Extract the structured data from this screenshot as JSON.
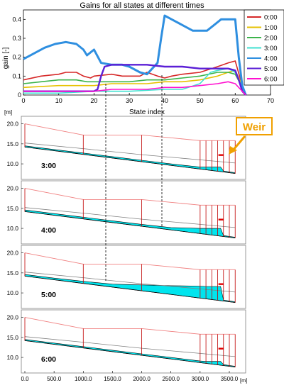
{
  "gains_chart": {
    "title": "Gains for all states at different times",
    "xlabel": "State index",
    "ylabel": "gain [-]",
    "yunit_label": "[m]"
  },
  "chart_data": [
    {
      "type": "line",
      "title": "Gains for all states at different times",
      "xlabel": "State index",
      "ylabel": "gain [-]",
      "xlim": [
        0,
        70
      ],
      "ylim": [
        0,
        0.45
      ],
      "xticks": [
        0,
        10,
        20,
        30,
        40,
        50,
        60,
        70
      ],
      "yticks": [
        0,
        0.1,
        0.2,
        0.3,
        0.4
      ],
      "legend_position": "top-right",
      "grid": false,
      "series": [
        {
          "name": "0:00",
          "color": "#d62828",
          "x": [
            0,
            5,
            10,
            12,
            15,
            17,
            19,
            20,
            25,
            28,
            30,
            33,
            35,
            38,
            40,
            42,
            45,
            50,
            55,
            58,
            60,
            62,
            63
          ],
          "y": [
            0.08,
            0.1,
            0.11,
            0.12,
            0.12,
            0.1,
            0.09,
            0.1,
            0.11,
            0.1,
            0.1,
            0.1,
            0.12,
            0.1,
            0.09,
            0.1,
            0.11,
            0.12,
            0.15,
            0.17,
            0.18,
            0.05,
            0
          ]
        },
        {
          "name": "1:00",
          "color": "#e6c200",
          "x": [
            0,
            10,
            20,
            25,
            30,
            35,
            40,
            45,
            50,
            55,
            58,
            60,
            62,
            63
          ],
          "y": [
            0.04,
            0.05,
            0.05,
            0.06,
            0.06,
            0.06,
            0.07,
            0.07,
            0.08,
            0.1,
            0.12,
            0.13,
            0.05,
            0
          ]
        },
        {
          "name": "2:00",
          "color": "#3cb44b",
          "x": [
            0,
            5,
            10,
            15,
            18,
            20,
            25,
            30,
            35,
            40,
            45,
            50,
            55,
            58,
            60,
            62,
            63
          ],
          "y": [
            0.06,
            0.07,
            0.08,
            0.08,
            0.07,
            0.07,
            0.07,
            0.07,
            0.08,
            0.08,
            0.09,
            0.1,
            0.12,
            0.12,
            0.11,
            0.04,
            0
          ]
        },
        {
          "name": "3:00",
          "color": "#40e0d0",
          "x": [
            0,
            10,
            20,
            30,
            40,
            45,
            50,
            53,
            55,
            58,
            60,
            62,
            63
          ],
          "y": [
            0.01,
            0.01,
            0.02,
            0.02,
            0.03,
            0.03,
            0.06,
            0.12,
            0.13,
            0.14,
            0.12,
            0.04,
            0
          ]
        },
        {
          "name": "4:00",
          "color": "#2f8fe0",
          "x": [
            0,
            3,
            6,
            9,
            12,
            15,
            17,
            18,
            20,
            22,
            25,
            28,
            30,
            33,
            35,
            38,
            39,
            40,
            42,
            45,
            48,
            50,
            52,
            54,
            56,
            58,
            60,
            61,
            62,
            63
          ],
          "y": [
            0.19,
            0.22,
            0.25,
            0.27,
            0.28,
            0.27,
            0.24,
            0.21,
            0.24,
            0.17,
            0.16,
            0.16,
            0.15,
            0.12,
            0.11,
            0.17,
            0.3,
            0.42,
            0.4,
            0.37,
            0.34,
            0.34,
            0.34,
            0.37,
            0.4,
            0.4,
            0.4,
            0.2,
            0.05,
            0
          ]
        },
        {
          "name": "5:00",
          "color": "#5b1fd6",
          "x": [
            0,
            10,
            20,
            21,
            22,
            23,
            25,
            30,
            35,
            40,
            45,
            50,
            55,
            58,
            60,
            61,
            62,
            63
          ],
          "y": [
            0.02,
            0.02,
            0.02,
            0.03,
            0.1,
            0.15,
            0.16,
            0.16,
            0.16,
            0.15,
            0.15,
            0.14,
            0.14,
            0.14,
            0.13,
            0.08,
            0.02,
            0
          ]
        },
        {
          "name": "6:00",
          "color": "#ff10d0",
          "x": [
            0,
            10,
            20,
            25,
            30,
            35,
            40,
            45,
            50,
            55,
            58,
            60,
            62,
            63
          ],
          "y": [
            0.02,
            0.02,
            0.02,
            0.03,
            0.03,
            0.03,
            0.04,
            0.04,
            0.05,
            0.06,
            0.07,
            0.06,
            0.02,
            0
          ]
        }
      ]
    },
    {
      "type": "line",
      "title": "",
      "xlabel": "[m]",
      "ylabel": "[m]",
      "xlim": [
        -100,
        3700
      ],
      "ylim": [
        7,
        21
      ],
      "xticks": [
        0,
        500,
        1000,
        1500,
        2000,
        2500,
        3000,
        3500
      ],
      "xtick_labels": [
        "0.0",
        "500.0",
        "1000.0",
        "1500.0",
        "2000.0",
        "2500.0",
        "3000.0",
        "3500.0"
      ],
      "yticks": [
        10,
        15,
        20
      ],
      "ytick_labels": [
        "10.0",
        "15.0",
        "20.0"
      ],
      "annotation": "Weir",
      "weir_x": 3350,
      "bed_line": {
        "x": [
          0,
          3600
        ],
        "y": [
          14.2,
          7.6
        ]
      },
      "bank_top": {
        "x": [
          0,
          1000,
          2000,
          3000,
          3600
        ],
        "y": [
          20,
          17.2,
          17.2,
          15.8,
          15.8
        ]
      },
      "cross_sections_x": [
        0,
        1000,
        2000,
        3000,
        3100,
        3200,
        3300,
        3400,
        3500,
        3600
      ],
      "panels": [
        {
          "label": "3:00",
          "water": {
            "x": [
              0,
              500,
              1000,
              1500,
              2000,
              2500,
              3000,
              3100,
              3200,
              3300,
              3350,
              3400,
              3500,
              3600
            ],
            "y": [
              14.5,
              13.6,
              12.7,
              11.8,
              10.9,
              10.0,
              9.2,
              9.2,
              9.2,
              9.2,
              9.2,
              8.2,
              8.0,
              7.8
            ]
          }
        },
        {
          "label": "4:00",
          "water": {
            "x": [
              0,
              500,
              1000,
              1500,
              2000,
              2500,
              3000,
              3100,
              3200,
              3300,
              3350,
              3400,
              3500,
              3600
            ],
            "y": [
              14.6,
              13.7,
              12.8,
              11.9,
              11.0,
              10.2,
              10.0,
              10.0,
              10.0,
              10.0,
              10.0,
              8.2,
              8.0,
              7.8
            ]
          }
        },
        {
          "label": "5:00",
          "water": {
            "x": [
              0,
              500,
              1000,
              1500,
              2000,
              2500,
              3000,
              3100,
              3200,
              3300,
              3350,
              3400,
              3500,
              3600
            ],
            "y": [
              14.6,
              13.7,
              12.9,
              12.2,
              12.0,
              11.8,
              11.7,
              11.6,
              11.6,
              11.6,
              11.6,
              8.2,
              8.0,
              7.8
            ]
          }
        },
        {
          "label": "6:00",
          "water": {
            "x": [
              0,
              500,
              1000,
              1500,
              2000,
              2500,
              3000,
              3100,
              3200,
              3300,
              3350,
              3400,
              3500,
              3600
            ],
            "y": [
              14.5,
              13.6,
              12.7,
              11.8,
              10.9,
              10.0,
              9.1,
              9.0,
              9.0,
              9.0,
              9.0,
              8.2,
              8.0,
              7.8
            ]
          }
        }
      ]
    }
  ],
  "colors": {
    "bank_line": "#f08080",
    "profile_line": "#808080",
    "section_line": "#c00000",
    "water_fill": "#00e5ee",
    "weir_marker": "#e00000",
    "weir_label": "#f0a000",
    "panel_border": "#808080"
  }
}
